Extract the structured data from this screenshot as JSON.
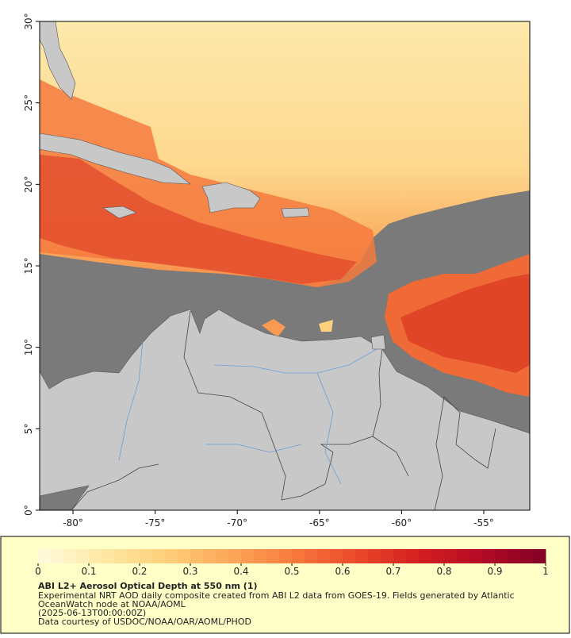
{
  "map": {
    "xlim": [
      -82.03,
      -52.2
    ],
    "ylim": [
      0,
      30
    ],
    "xticks": [
      {
        "value": -80,
        "label": "-80°"
      },
      {
        "value": -75,
        "label": "-75°"
      },
      {
        "value": -70,
        "label": "-70°"
      },
      {
        "value": -65,
        "label": "-65°"
      },
      {
        "value": -60,
        "label": "-60°"
      },
      {
        "value": -55,
        "label": "-55°"
      }
    ],
    "yticks": [
      {
        "value": 0,
        "label": "0°"
      },
      {
        "value": 5,
        "label": "5°"
      },
      {
        "value": 10,
        "label": "10°"
      },
      {
        "value": 15,
        "label": "15°"
      },
      {
        "value": 20,
        "label": "20°"
      },
      {
        "value": 25,
        "label": "25°"
      },
      {
        "value": 30,
        "label": "30°"
      }
    ]
  },
  "colorbar": {
    "range": [
      0,
      1
    ],
    "ticks": [
      0,
      0.1,
      0.2,
      0.3,
      0.4,
      0.5,
      0.6,
      0.7,
      0.8,
      0.9,
      1
    ],
    "colors": [
      "#fffbe0",
      "#fee9a6",
      "#fdd07c",
      "#fca85a",
      "#f87b3e",
      "#ea4a2c",
      "#d41f20",
      "#b30a26",
      "#800026"
    ]
  },
  "caption": {
    "title": "ABI L2+ Aerosol Optical Depth at 550 nm (1)",
    "line1": "Experimental NRT AOD daily composite created from ABI L2 data from GOES-19. Fields generated by Atlantic",
    "line2": "OceanWatch node at NOAA/AOML",
    "line3": "(2025-06-13T00:00:00Z)",
    "line4": "Data courtesy of USDOC/NOAA/OAR/AOML/PHOD"
  }
}
